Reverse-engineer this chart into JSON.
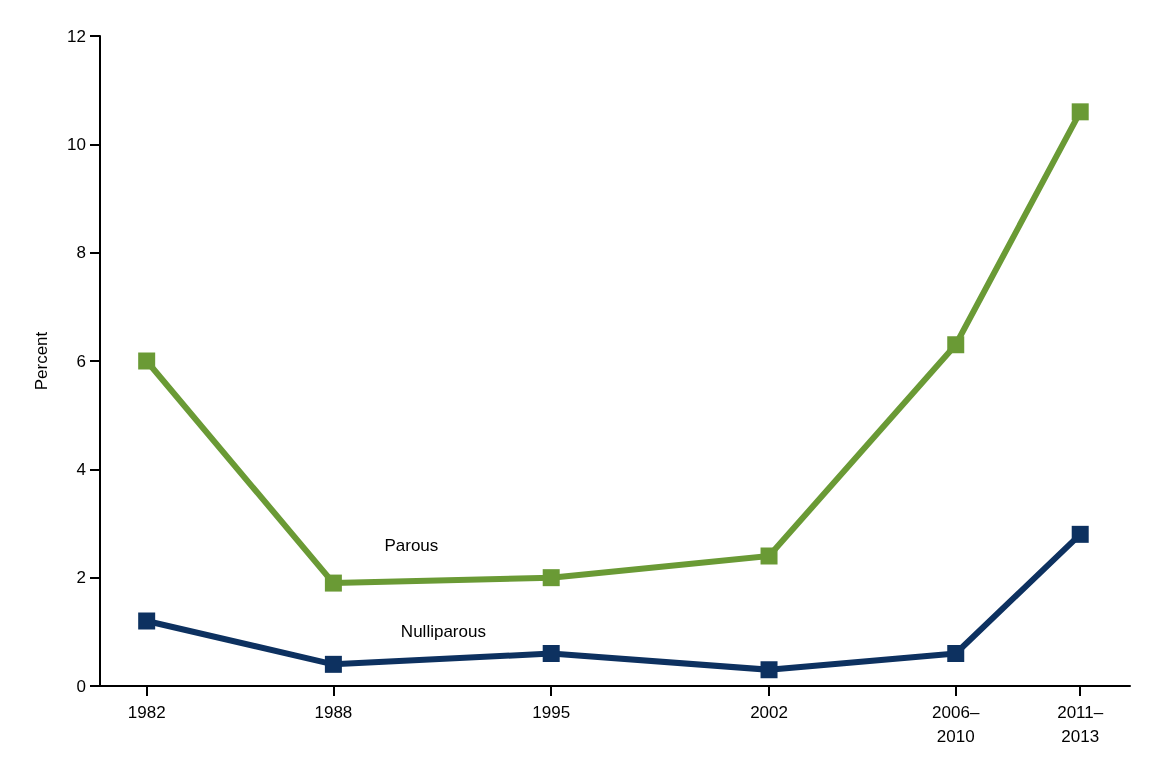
{
  "chart_data": {
    "type": "line",
    "ylabel": "Percent",
    "x": [
      1982,
      1988,
      1995,
      2002,
      2008,
      2012
    ],
    "xlim": [
      1980.5,
      2013.6
    ],
    "xticks": [
      1982,
      1988,
      1995,
      2002,
      {
        "value": 2008,
        "label": "2006–2010"
      },
      {
        "value": 2012,
        "label": "2011–2013"
      }
    ],
    "ylim": [
      0,
      12
    ],
    "yticks": [
      0,
      2,
      4,
      6,
      8,
      10,
      12
    ],
    "grid": false,
    "legend": false,
    "marker": "square",
    "line_style": "solid",
    "series": [
      {
        "name": "Parous",
        "color": "#6a9a35",
        "values": [
          6.0,
          1.9,
          2.0,
          2.4,
          6.3,
          10.6
        ]
      },
      {
        "name": "Nulliparous",
        "color": "#0d3160",
        "values": [
          1.2,
          0.4,
          0.6,
          0.3,
          0.6,
          2.8
        ]
      }
    ]
  }
}
